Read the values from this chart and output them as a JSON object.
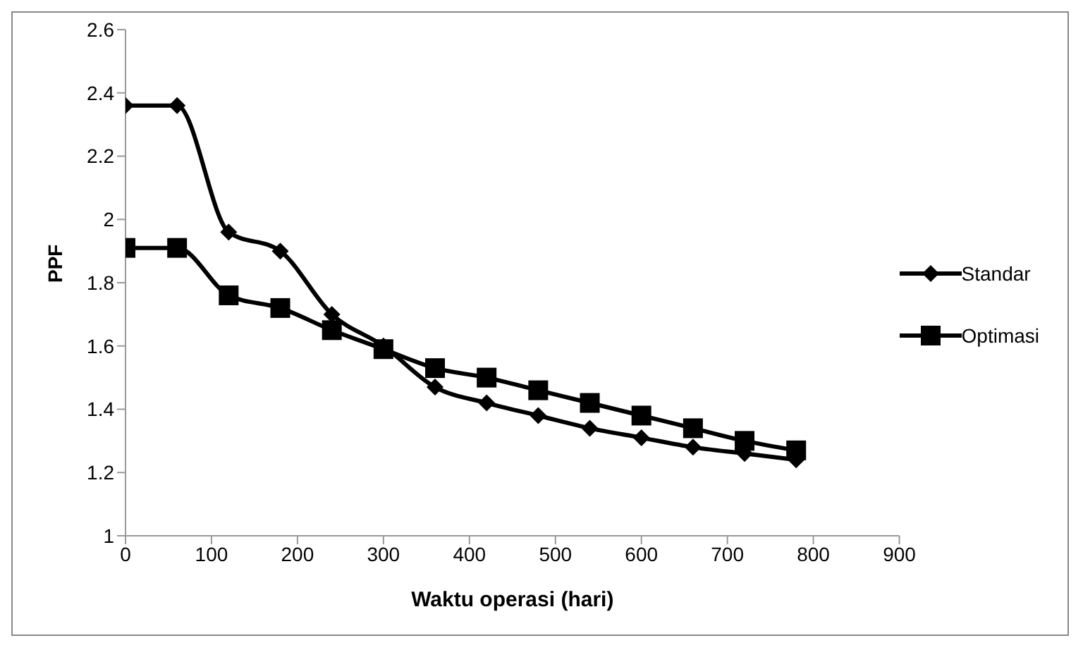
{
  "chart_data": {
    "type": "line",
    "xlabel": "Waktu operasi (hari)",
    "ylabel": "PPF",
    "x": [
      0,
      60,
      120,
      180,
      240,
      300,
      360,
      420,
      480,
      540,
      600,
      660,
      720,
      780
    ],
    "series": [
      {
        "name": "Standar",
        "color": "#000000",
        "marker": "diamond",
        "values": [
          2.36,
          2.36,
          1.96,
          1.9,
          1.7,
          1.6,
          1.47,
          1.42,
          1.38,
          1.34,
          1.31,
          1.28,
          1.26,
          1.24
        ]
      },
      {
        "name": "Optimasi",
        "color": "#000000",
        "marker": "square",
        "values": [
          1.91,
          1.91,
          1.76,
          1.72,
          1.65,
          1.59,
          1.53,
          1.5,
          1.46,
          1.42,
          1.38,
          1.34,
          1.3,
          1.27
        ]
      }
    ],
    "xlim": [
      0,
      900
    ],
    "xticks": [
      0,
      100,
      200,
      300,
      400,
      500,
      600,
      700,
      800,
      900
    ],
    "ylim": [
      1,
      2.6
    ],
    "yticks": [
      1,
      1.2,
      1.4,
      1.6,
      1.8,
      2,
      2.2,
      2.4,
      2.6
    ],
    "grid": false,
    "legend": "right",
    "line_style": "solid"
  }
}
